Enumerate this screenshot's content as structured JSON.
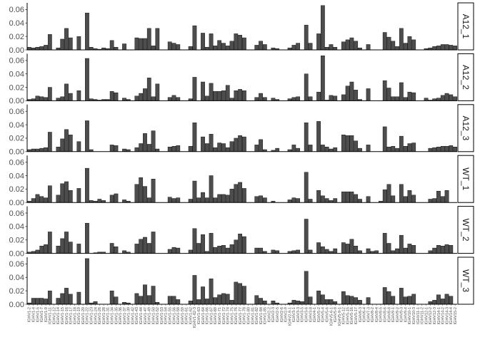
{
  "chart_data": {
    "type": "bar",
    "facet_layout": "rows",
    "facet_strip_position": "right",
    "grid": false,
    "legend": "none",
    "bar_color": "#4d4d4d",
    "bar_outline": "#000000",
    "ylim": [
      0,
      0.07
    ],
    "y_ticks": [
      "0.00",
      "0.02",
      "0.04",
      "0.06"
    ],
    "categories": [
      "IGHV1-2",
      "IGHV1-4",
      "IGHV1-5",
      "IGHV1-7",
      "IGHV1-9",
      "IGHV1-11",
      "IGHV1-12",
      "IGHV1-14",
      "IGHV1-15",
      "IGHV1-16",
      "IGHV1-17",
      "IGHV1-18",
      "IGHV1-19",
      "IGHV1-20",
      "IGHV1-22",
      "IGHV1-23",
      "IGHV1-24",
      "IGHV1-26",
      "IGHV1-28",
      "IGHV1-31",
      "IGHV1-34",
      "IGHV1-35",
      "IGHV1-36",
      "IGHV1-37",
      "IGHV1-39",
      "IGHV1-42",
      "IGHV1-43",
      "IGHV1-44",
      "IGHV1-47",
      "IGHV1-49",
      "IGHV1-50",
      "IGHV1-52",
      "IGHV1-53",
      "IGHV1-54",
      "IGHV1-55",
      "IGHV1-56",
      "IGHV1-58",
      "IGHV1-59",
      "IGHV1-61",
      "IGHV1-62",
      "IGHV1-62-3",
      "IGHV1-63",
      "IGHV1-64",
      "IGHV1-66",
      "IGHV1-67",
      "IGHV1-69",
      "IGHV1-71",
      "IGHV1-72",
      "IGHV1-74",
      "IGHV1-75",
      "IGHV1-76",
      "IGHV1-77",
      "IGHV1-78",
      "IGHV1-80",
      "IGHV1-81",
      "IGHV1-82",
      "IGHV1-84",
      "IGHV1-85",
      "IGHV2-2",
      "IGHV2-3",
      "IGHV2-5",
      "IGHV2-6",
      "IGHV2-9",
      "IGHV2-9-1",
      "IGHV3-1",
      "IGHV3-3",
      "IGHV3-5",
      "IGHV3-6",
      "IGHV3-8",
      "IGHV4-1",
      "IGHV5-2",
      "IGHV5-4",
      "IGHV5-6",
      "IGHV5-6-1",
      "IGHV5-9",
      "IGHV5-9-1",
      "IGHV5-12",
      "IGHV5-15",
      "IGHV5-16",
      "IGHV5-17",
      "IGHV6-3",
      "IGHV6-4",
      "IGHV7-3",
      "IGHV8-2",
      "IGHV8-4",
      "IGHV8-5",
      "IGHV8-6",
      "IGHV8-8",
      "IGHV9-1",
      "IGHV9-2",
      "IGHV9-3",
      "IGHV9-4",
      "IGHV10-1",
      "IGHV10-3",
      "IGHV11-1",
      "IGHV11-2",
      "IGHV12-1",
      "IGHV12-2",
      "IGHV12-3",
      "IGHV14-1",
      "IGHV14-2",
      "IGHV14-3",
      "IGHV14-4",
      "IGHV15-2"
    ],
    "series": [
      {
        "name": "A12_1",
        "values": [
          0.004,
          0.003,
          0.004,
          0.005,
          0.007,
          0.023,
          0.0,
          0.003,
          0.016,
          0.032,
          0.018,
          0.0,
          0.02,
          0.0,
          0.055,
          0.004,
          0.002,
          0.001,
          0.003,
          0.002,
          0.014,
          0.004,
          0.0,
          0.009,
          0.0,
          0.0,
          0.018,
          0.017,
          0.017,
          0.032,
          0.006,
          0.032,
          0.0,
          0.0,
          0.012,
          0.01,
          0.008,
          0.0,
          0.0,
          0.005,
          0.036,
          0.0,
          0.025,
          0.004,
          0.024,
          0.006,
          0.014,
          0.01,
          0.006,
          0.013,
          0.024,
          0.022,
          0.018,
          0.0,
          0.0,
          0.007,
          0.013,
          0.008,
          0.0,
          0.003,
          0.002,
          0.0,
          0.0,
          0.003,
          0.007,
          0.01,
          0.0,
          0.037,
          0.01,
          0.0,
          0.024,
          0.066,
          0.004,
          0.008,
          0.004,
          0.0,
          0.012,
          0.015,
          0.018,
          0.013,
          0.003,
          0.0,
          0.008,
          0.0,
          0.0,
          0.0,
          0.026,
          0.019,
          0.013,
          0.005,
          0.032,
          0.01,
          0.02,
          0.015,
          0.0,
          0.0,
          0.002,
          0.003,
          0.005,
          0.006,
          0.008,
          0.008,
          0.007,
          0.006
        ]
      },
      {
        "name": "A12_2",
        "values": [
          0.002,
          0.003,
          0.007,
          0.006,
          0.005,
          0.02,
          0.0,
          0.004,
          0.006,
          0.025,
          0.011,
          0.0,
          0.015,
          0.0,
          0.063,
          0.003,
          0.002,
          0.001,
          0.002,
          0.002,
          0.014,
          0.012,
          0.0,
          0.004,
          0.002,
          0.0,
          0.007,
          0.011,
          0.018,
          0.034,
          0.006,
          0.025,
          0.0,
          0.0,
          0.005,
          0.008,
          0.005,
          0.0,
          0.0,
          0.003,
          0.035,
          0.0,
          0.028,
          0.007,
          0.026,
          0.014,
          0.014,
          0.015,
          0.023,
          0.004,
          0.015,
          0.017,
          0.015,
          0.0,
          0.0,
          0.005,
          0.011,
          0.005,
          0.0,
          0.004,
          0.002,
          0.0,
          0.0,
          0.003,
          0.005,
          0.006,
          0.0,
          0.04,
          0.006,
          0.0,
          0.013,
          0.067,
          0.001,
          0.008,
          0.007,
          0.0,
          0.009,
          0.022,
          0.028,
          0.016,
          0.002,
          0.0,
          0.018,
          0.0,
          0.0,
          0.0,
          0.03,
          0.019,
          0.006,
          0.006,
          0.027,
          0.005,
          0.013,
          0.012,
          0.0,
          0.0,
          0.004,
          0.001,
          0.003,
          0.004,
          0.008,
          0.011,
          0.009,
          0.006
        ]
      },
      {
        "name": "A12_3",
        "values": [
          0.003,
          0.004,
          0.004,
          0.005,
          0.006,
          0.029,
          0.0,
          0.007,
          0.019,
          0.033,
          0.025,
          0.0,
          0.015,
          0.0,
          0.046,
          0.003,
          0.0,
          0.0,
          0.0,
          0.0,
          0.01,
          0.009,
          0.0,
          0.004,
          0.003,
          0.0,
          0.006,
          0.012,
          0.027,
          0.011,
          0.031,
          0.004,
          0.0,
          0.0,
          0.007,
          0.008,
          0.009,
          0.0,
          0.0,
          0.008,
          0.043,
          0.0,
          0.022,
          0.012,
          0.026,
          0.006,
          0.013,
          0.012,
          0.006,
          0.015,
          0.02,
          0.024,
          0.022,
          0.0,
          0.0,
          0.01,
          0.018,
          0.003,
          0.0,
          0.002,
          0.005,
          0.0,
          0.0,
          0.003,
          0.01,
          0.005,
          0.0,
          0.043,
          0.01,
          0.0,
          0.045,
          0.01,
          0.007,
          0.004,
          0.006,
          0.0,
          0.025,
          0.024,
          0.024,
          0.016,
          0.005,
          0.0,
          0.01,
          0.0,
          0.0,
          0.0,
          0.037,
          0.007,
          0.008,
          0.005,
          0.023,
          0.008,
          0.012,
          0.013,
          0.0,
          0.0,
          0.0,
          0.005,
          0.006,
          0.007,
          0.008,
          0.008,
          0.009,
          0.007
        ]
      },
      {
        "name": "WT_1",
        "values": [
          0.002,
          0.006,
          0.012,
          0.009,
          0.007,
          0.025,
          0.0,
          0.011,
          0.028,
          0.031,
          0.018,
          0.0,
          0.021,
          0.0,
          0.051,
          0.003,
          0.002,
          0.005,
          0.003,
          0.0,
          0.011,
          0.013,
          0.0,
          0.004,
          0.002,
          0.0,
          0.027,
          0.037,
          0.024,
          0.007,
          0.035,
          0.0,
          0.0,
          0.0,
          0.008,
          0.006,
          0.007,
          0.0,
          0.0,
          0.005,
          0.032,
          0.007,
          0.015,
          0.007,
          0.04,
          0.007,
          0.012,
          0.012,
          0.011,
          0.02,
          0.027,
          0.03,
          0.021,
          0.0,
          0.0,
          0.009,
          0.01,
          0.007,
          0.0,
          0.002,
          0.0,
          0.0,
          0.0,
          0.004,
          0.007,
          0.006,
          0.0,
          0.045,
          0.005,
          0.0,
          0.018,
          0.01,
          0.006,
          0.003,
          0.006,
          0.0,
          0.016,
          0.016,
          0.016,
          0.012,
          0.005,
          0.0,
          0.009,
          0.0,
          0.0,
          0.002,
          0.019,
          0.027,
          0.01,
          0.0,
          0.027,
          0.009,
          0.018,
          0.011,
          0.0,
          0.0,
          0.0,
          0.005,
          0.006,
          0.017,
          0.009,
          0.018,
          0.0,
          0.0
        ]
      },
      {
        "name": "WT_2",
        "values": [
          0.002,
          0.003,
          0.005,
          0.011,
          0.013,
          0.032,
          0.0,
          0.011,
          0.022,
          0.032,
          0.017,
          0.0,
          0.014,
          0.0,
          0.045,
          0.0,
          0.001,
          0.002,
          0.002,
          0.0,
          0.015,
          0.01,
          0.0,
          0.004,
          0.002,
          0.0,
          0.014,
          0.021,
          0.024,
          0.015,
          0.032,
          0.0,
          0.0,
          0.0,
          0.006,
          0.009,
          0.008,
          0.0,
          0.0,
          0.005,
          0.037,
          0.015,
          0.028,
          0.003,
          0.03,
          0.009,
          0.011,
          0.012,
          0.008,
          0.013,
          0.02,
          0.029,
          0.025,
          0.0,
          0.0,
          0.008,
          0.008,
          0.003,
          0.0,
          0.005,
          0.004,
          0.0,
          0.0,
          0.003,
          0.004,
          0.005,
          0.0,
          0.051,
          0.005,
          0.0,
          0.016,
          0.01,
          0.006,
          0.003,
          0.007,
          0.0,
          0.016,
          0.014,
          0.021,
          0.011,
          0.004,
          0.0,
          0.007,
          0.003,
          0.004,
          0.0,
          0.03,
          0.015,
          0.004,
          0.007,
          0.027,
          0.008,
          0.014,
          0.012,
          0.0,
          0.0,
          0.0,
          0.004,
          0.008,
          0.012,
          0.011,
          0.013,
          0.012,
          0.0
        ]
      },
      {
        "name": "WT_3",
        "values": [
          0.002,
          0.009,
          0.009,
          0.009,
          0.008,
          0.02,
          0.0,
          0.009,
          0.016,
          0.024,
          0.015,
          0.0,
          0.018,
          0.0,
          0.068,
          0.002,
          0.004,
          0.0,
          0.0,
          0.0,
          0.02,
          0.011,
          0.0,
          0.003,
          0.002,
          0.0,
          0.016,
          0.012,
          0.029,
          0.013,
          0.027,
          0.003,
          0.0,
          0.0,
          0.012,
          0.012,
          0.007,
          0.0,
          0.0,
          0.005,
          0.043,
          0.007,
          0.026,
          0.008,
          0.038,
          0.01,
          0.014,
          0.016,
          0.015,
          0.006,
          0.033,
          0.031,
          0.027,
          0.0,
          0.0,
          0.013,
          0.009,
          0.005,
          0.0,
          0.005,
          0.002,
          0.0,
          0.0,
          0.002,
          0.006,
          0.005,
          0.004,
          0.049,
          0.011,
          0.0,
          0.02,
          0.014,
          0.007,
          0.007,
          0.004,
          0.0,
          0.019,
          0.013,
          0.012,
          0.01,
          0.006,
          0.0,
          0.01,
          0.0,
          0.0,
          0.0,
          0.025,
          0.019,
          0.012,
          0.0,
          0.024,
          0.011,
          0.012,
          0.015,
          0.0,
          0.0,
          0.0,
          0.004,
          0.006,
          0.014,
          0.008,
          0.015,
          0.012,
          0.0
        ]
      }
    ]
  }
}
